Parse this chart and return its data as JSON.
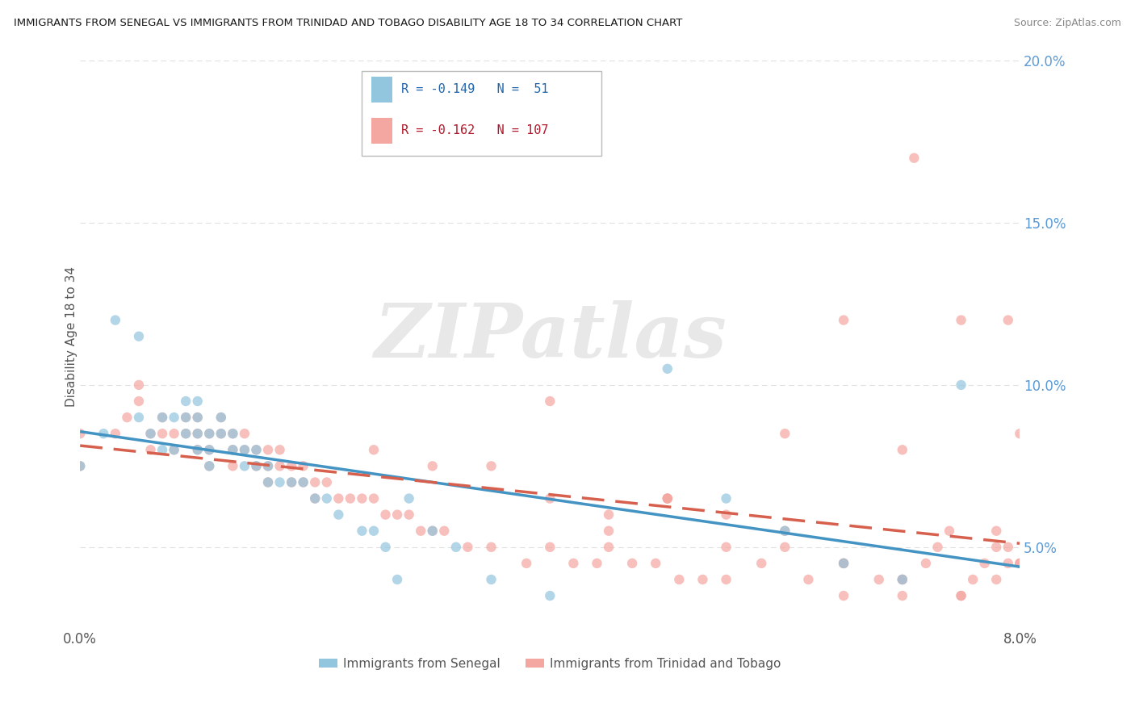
{
  "title": "IMMIGRANTS FROM SENEGAL VS IMMIGRANTS FROM TRINIDAD AND TOBAGO DISABILITY AGE 18 TO 34 CORRELATION CHART",
  "source": "Source: ZipAtlas.com",
  "ylabel": "Disability Age 18 to 34",
  "legend_label1": "Immigrants from Senegal",
  "legend_label2": "Immigrants from Trinidad and Tobago",
  "R1": -0.149,
  "N1": 51,
  "R2": -0.162,
  "N2": 107,
  "color1": "#92c5de",
  "color2": "#f4a6a0",
  "color1_line": "#4393c3",
  "color2_line": "#d6604d",
  "watermark_color": "#e8e8e8",
  "background_color": "#ffffff",
  "x_range": [
    0.0,
    0.08
  ],
  "y_range": [
    0.025,
    0.205
  ],
  "y_ticks": [
    0.05,
    0.1,
    0.15,
    0.2
  ],
  "y_tick_labels": [
    "5.0%",
    "10.0%",
    "15.0%",
    "20.0%"
  ],
  "grid_color": "#e0e0e0",
  "senegal_x": [
    0.0,
    0.002,
    0.003,
    0.005,
    0.005,
    0.006,
    0.007,
    0.007,
    0.008,
    0.008,
    0.009,
    0.009,
    0.009,
    0.01,
    0.01,
    0.01,
    0.01,
    0.011,
    0.011,
    0.011,
    0.012,
    0.012,
    0.013,
    0.013,
    0.014,
    0.014,
    0.015,
    0.015,
    0.016,
    0.016,
    0.017,
    0.018,
    0.019,
    0.02,
    0.021,
    0.022,
    0.024,
    0.025,
    0.026,
    0.027,
    0.028,
    0.03,
    0.032,
    0.035,
    0.04,
    0.05,
    0.055,
    0.06,
    0.065,
    0.07,
    0.075
  ],
  "senegal_y": [
    0.075,
    0.085,
    0.12,
    0.115,
    0.09,
    0.085,
    0.09,
    0.08,
    0.09,
    0.08,
    0.095,
    0.09,
    0.085,
    0.095,
    0.09,
    0.085,
    0.08,
    0.085,
    0.08,
    0.075,
    0.09,
    0.085,
    0.085,
    0.08,
    0.08,
    0.075,
    0.08,
    0.075,
    0.075,
    0.07,
    0.07,
    0.07,
    0.07,
    0.065,
    0.065,
    0.06,
    0.055,
    0.055,
    0.05,
    0.04,
    0.065,
    0.055,
    0.05,
    0.04,
    0.035,
    0.105,
    0.065,
    0.055,
    0.045,
    0.04,
    0.1
  ],
  "trinidad_x": [
    0.0,
    0.0,
    0.003,
    0.004,
    0.005,
    0.005,
    0.006,
    0.006,
    0.007,
    0.007,
    0.008,
    0.008,
    0.009,
    0.009,
    0.01,
    0.01,
    0.01,
    0.011,
    0.011,
    0.011,
    0.012,
    0.012,
    0.013,
    0.013,
    0.013,
    0.014,
    0.014,
    0.015,
    0.015,
    0.016,
    0.016,
    0.016,
    0.017,
    0.017,
    0.018,
    0.018,
    0.019,
    0.019,
    0.02,
    0.02,
    0.021,
    0.022,
    0.023,
    0.024,
    0.025,
    0.026,
    0.027,
    0.028,
    0.029,
    0.03,
    0.031,
    0.033,
    0.035,
    0.038,
    0.04,
    0.042,
    0.044,
    0.045,
    0.047,
    0.049,
    0.05,
    0.051,
    0.053,
    0.055,
    0.058,
    0.06,
    0.062,
    0.065,
    0.065,
    0.068,
    0.07,
    0.07,
    0.071,
    0.072,
    0.073,
    0.074,
    0.075,
    0.075,
    0.076,
    0.077,
    0.078,
    0.078,
    0.079,
    0.079,
    0.08,
    0.08,
    0.04,
    0.045,
    0.05,
    0.055,
    0.06,
    0.065,
    0.07,
    0.075,
    0.078,
    0.079,
    0.08,
    0.025,
    0.03,
    0.035,
    0.04,
    0.045,
    0.05,
    0.055,
    0.06,
    0.065,
    0.07
  ],
  "trinidad_y": [
    0.085,
    0.075,
    0.085,
    0.09,
    0.1,
    0.095,
    0.085,
    0.08,
    0.09,
    0.085,
    0.085,
    0.08,
    0.09,
    0.085,
    0.09,
    0.085,
    0.08,
    0.085,
    0.08,
    0.075,
    0.09,
    0.085,
    0.085,
    0.08,
    0.075,
    0.085,
    0.08,
    0.08,
    0.075,
    0.08,
    0.075,
    0.07,
    0.08,
    0.075,
    0.075,
    0.07,
    0.075,
    0.07,
    0.07,
    0.065,
    0.07,
    0.065,
    0.065,
    0.065,
    0.065,
    0.06,
    0.06,
    0.06,
    0.055,
    0.055,
    0.055,
    0.05,
    0.05,
    0.045,
    0.05,
    0.045,
    0.045,
    0.05,
    0.045,
    0.045,
    0.065,
    0.04,
    0.04,
    0.04,
    0.045,
    0.085,
    0.04,
    0.045,
    0.12,
    0.04,
    0.04,
    0.08,
    0.17,
    0.045,
    0.05,
    0.055,
    0.035,
    0.12,
    0.04,
    0.045,
    0.05,
    0.055,
    0.045,
    0.12,
    0.085,
    0.045,
    0.095,
    0.055,
    0.065,
    0.06,
    0.055,
    0.045,
    0.035,
    0.035,
    0.04,
    0.05,
    0.045,
    0.08,
    0.075,
    0.075,
    0.065,
    0.06,
    0.065,
    0.05,
    0.05,
    0.035,
    0.04
  ]
}
